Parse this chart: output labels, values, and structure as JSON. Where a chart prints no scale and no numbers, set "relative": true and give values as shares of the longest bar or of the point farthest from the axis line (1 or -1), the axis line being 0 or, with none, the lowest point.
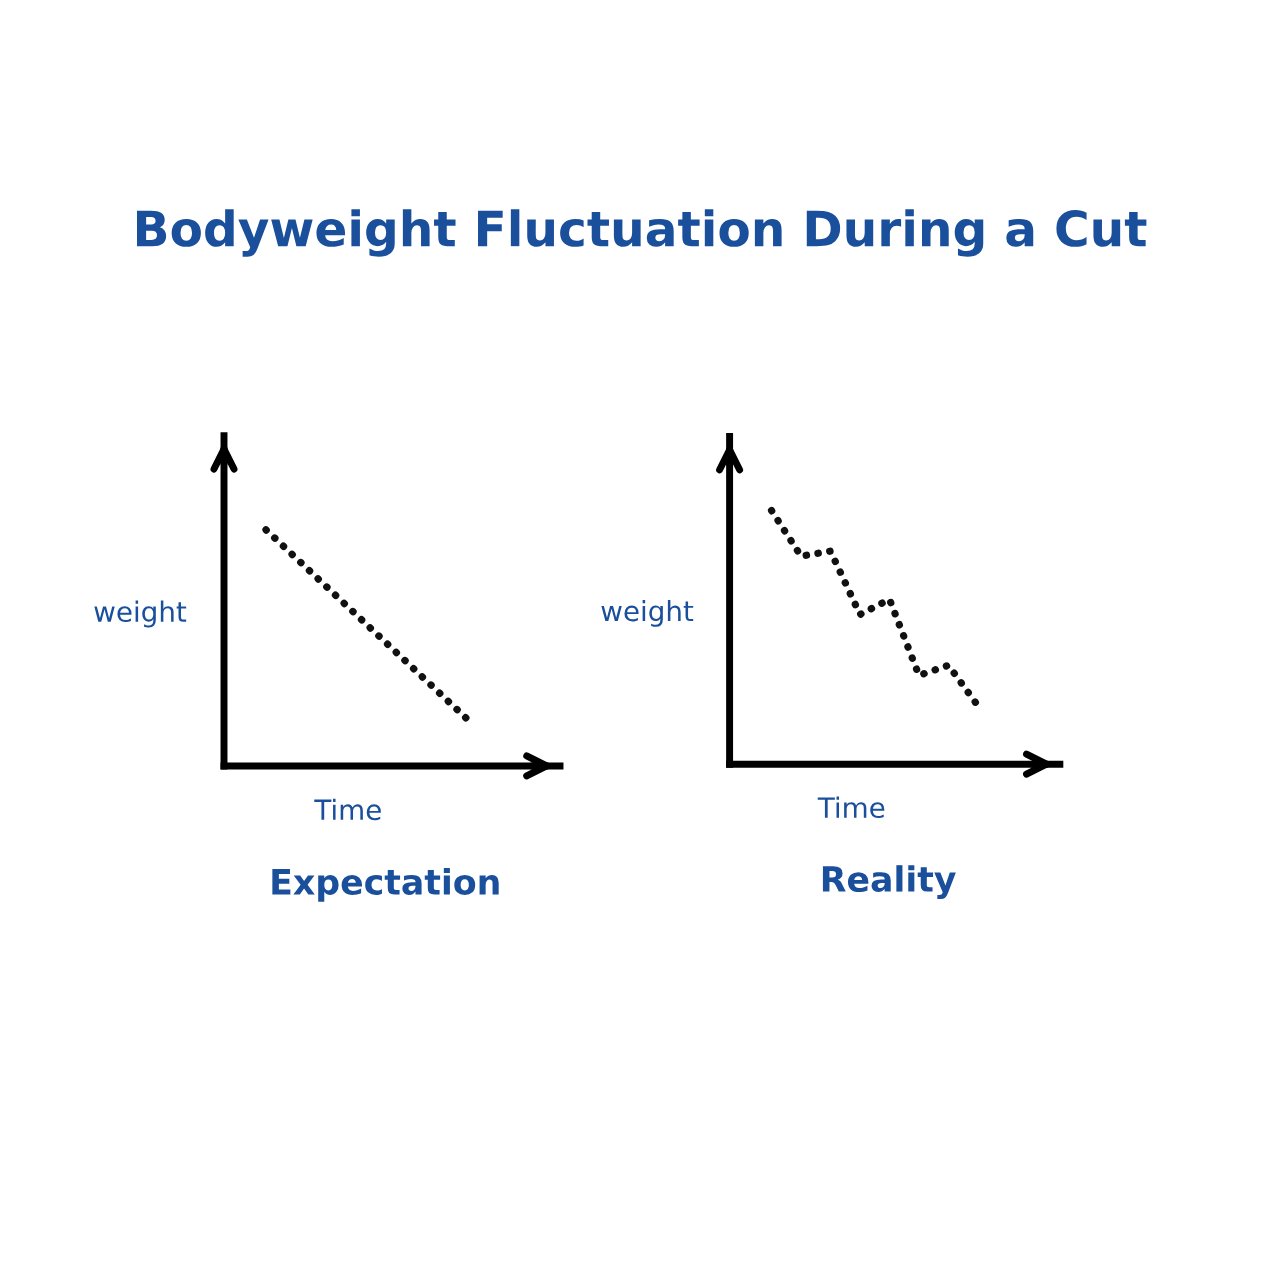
{
  "chart_data": [
    {
      "type": "line",
      "title": "Bodyweight Fluctuation During a Cut",
      "subtitle": "Expectation",
      "xlabel": "Time",
      "ylabel": "weight",
      "relative": true,
      "categories": [
        null,
        null
      ],
      "series": [
        {
          "color": "#111111",
          "values": [
            1,
            0.19
          ]
        }
      ],
      "line_style": "dotted",
      "grid": false,
      "tick_labels": false
    },
    {
      "type": "line",
      "subtitle": "Reality",
      "xlabel": "Time",
      "ylabel": "weight",
      "relative": true,
      "categories": [
        null,
        null,
        null,
        null,
        null,
        null,
        null,
        null
      ],
      "series": [
        {
          "color": "#111111",
          "values": [
            1,
            0.82,
            0.84,
            0.59,
            0.65,
            0.35,
            0.39,
            0.23
          ]
        }
      ],
      "line_style": "dotted",
      "grid": false,
      "tick_labels": false
    }
  ]
}
